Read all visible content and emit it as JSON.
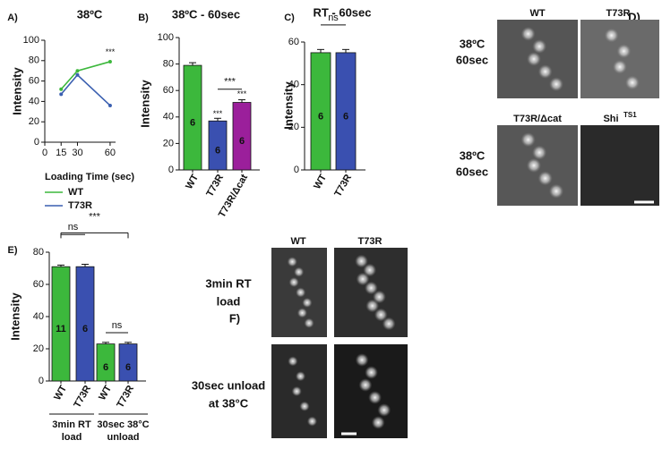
{
  "chart_data": [
    {
      "type": "line",
      "panel": "A)",
      "title": "38ºC",
      "x_label": "Loading Time (sec)",
      "y_label": "Intensity",
      "x": [
        15,
        30,
        60
      ],
      "xlim": [
        0,
        65
      ],
      "xticks": [
        0,
        15,
        30,
        60
      ],
      "ylim": [
        0,
        100
      ],
      "yticks": [
        0,
        20,
        40,
        60,
        80,
        100
      ],
      "series": [
        {
          "name": "WT",
          "color": "#3cb83c",
          "values": [
            52,
            70,
            79
          ]
        },
        {
          "name": "T73R",
          "color": "#3a5fb0",
          "values": [
            47,
            66,
            36
          ]
        }
      ],
      "annotations": [
        "***"
      ],
      "legend": "below"
    },
    {
      "type": "bar",
      "panel": "B)",
      "title": "38ºC - 60sec",
      "y_label": "Intensity",
      "categories": [
        "WT",
        "T73R",
        "T73R/Δcat"
      ],
      "values": [
        79,
        37,
        51
      ],
      "errors": [
        2,
        2,
        2
      ],
      "n": [
        6,
        6,
        6
      ],
      "colors": [
        "#3cb83c",
        "#3a50b0",
        "#9b1f9b"
      ],
      "ylim": [
        0,
        100
      ],
      "yticks": [
        0,
        20,
        40,
        60,
        80,
        100
      ],
      "annotations": [
        "***",
        "***",
        "***"
      ]
    },
    {
      "type": "bar",
      "panel": "C)",
      "title": "RT - 60sec",
      "y_label": "Intensity",
      "categories": [
        "WT",
        "T73R"
      ],
      "values": [
        55,
        55
      ],
      "errors": [
        1.5,
        1.5
      ],
      "n": [
        6,
        6
      ],
      "colors": [
        "#3cb83c",
        "#3a50b0"
      ],
      "ylim": [
        0,
        60
      ],
      "yticks": [
        0,
        20,
        40,
        60
      ],
      "annotations": [
        "ns"
      ]
    },
    {
      "type": "bar",
      "panel": "E)",
      "y_label": "Intensity",
      "categories": [
        "WT",
        "T73R",
        "WT",
        "T73R"
      ],
      "values": [
        71,
        71,
        23,
        23
      ],
      "errors": [
        1,
        1.5,
        1,
        1
      ],
      "n": [
        11,
        6,
        6,
        6
      ],
      "colors": [
        "#3cb83c",
        "#3a50b0",
        "#3cb83c",
        "#3a50b0"
      ],
      "ylim": [
        0,
        80
      ],
      "yticks": [
        0,
        20,
        40,
        60,
        80
      ],
      "groups": [
        [
          "3min RT",
          "load"
        ],
        [
          "30sec 38°C",
          "unload"
        ]
      ],
      "annotations": [
        "ns",
        "***",
        "ns"
      ]
    }
  ],
  "micrographs": [
    {
      "label": "D)",
      "titles": [
        {
          "text": "WT"
        },
        {
          "text": "T73R"
        },
        {
          "text": "T73R/Δcat"
        },
        {
          "text": "Shi",
          "sup": "TS1"
        }
      ],
      "row_labels": [
        [
          "38ºC",
          "60sec"
        ],
        [
          "38ºC",
          "60sec"
        ]
      ]
    },
    {
      "label": "F)",
      "titles": [
        {
          "text": "WT"
        },
        {
          "text": "T73R"
        }
      ],
      "row_labels": [
        [
          "3min RT",
          "load"
        ],
        [
          "30sec unload",
          "at 38°C"
        ]
      ]
    }
  ]
}
